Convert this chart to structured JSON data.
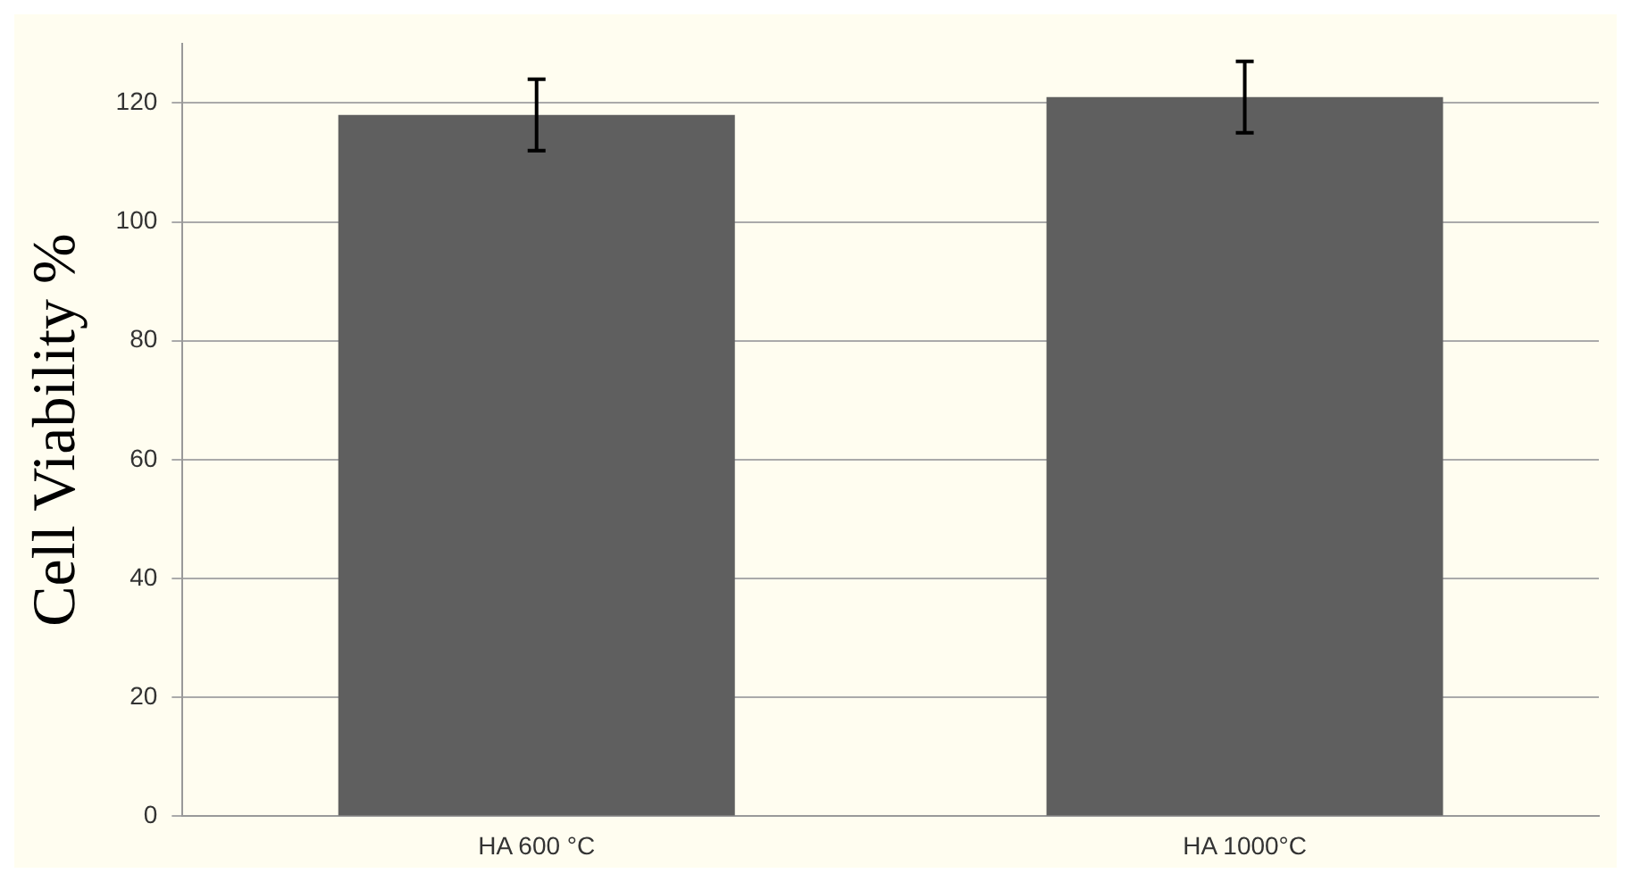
{
  "chart_data": {
    "type": "bar",
    "ylabel": "Cell Viability %",
    "categories": [
      "HA 600 °C",
      "HA 1000°C"
    ],
    "values": [
      118,
      121
    ],
    "errors": [
      6,
      6
    ],
    "color": "#5f5f5f",
    "ylim": [
      0,
      130
    ],
    "yticks": [
      0,
      20,
      40,
      60,
      80,
      100,
      120
    ],
    "grid": "y",
    "legend": false
  }
}
